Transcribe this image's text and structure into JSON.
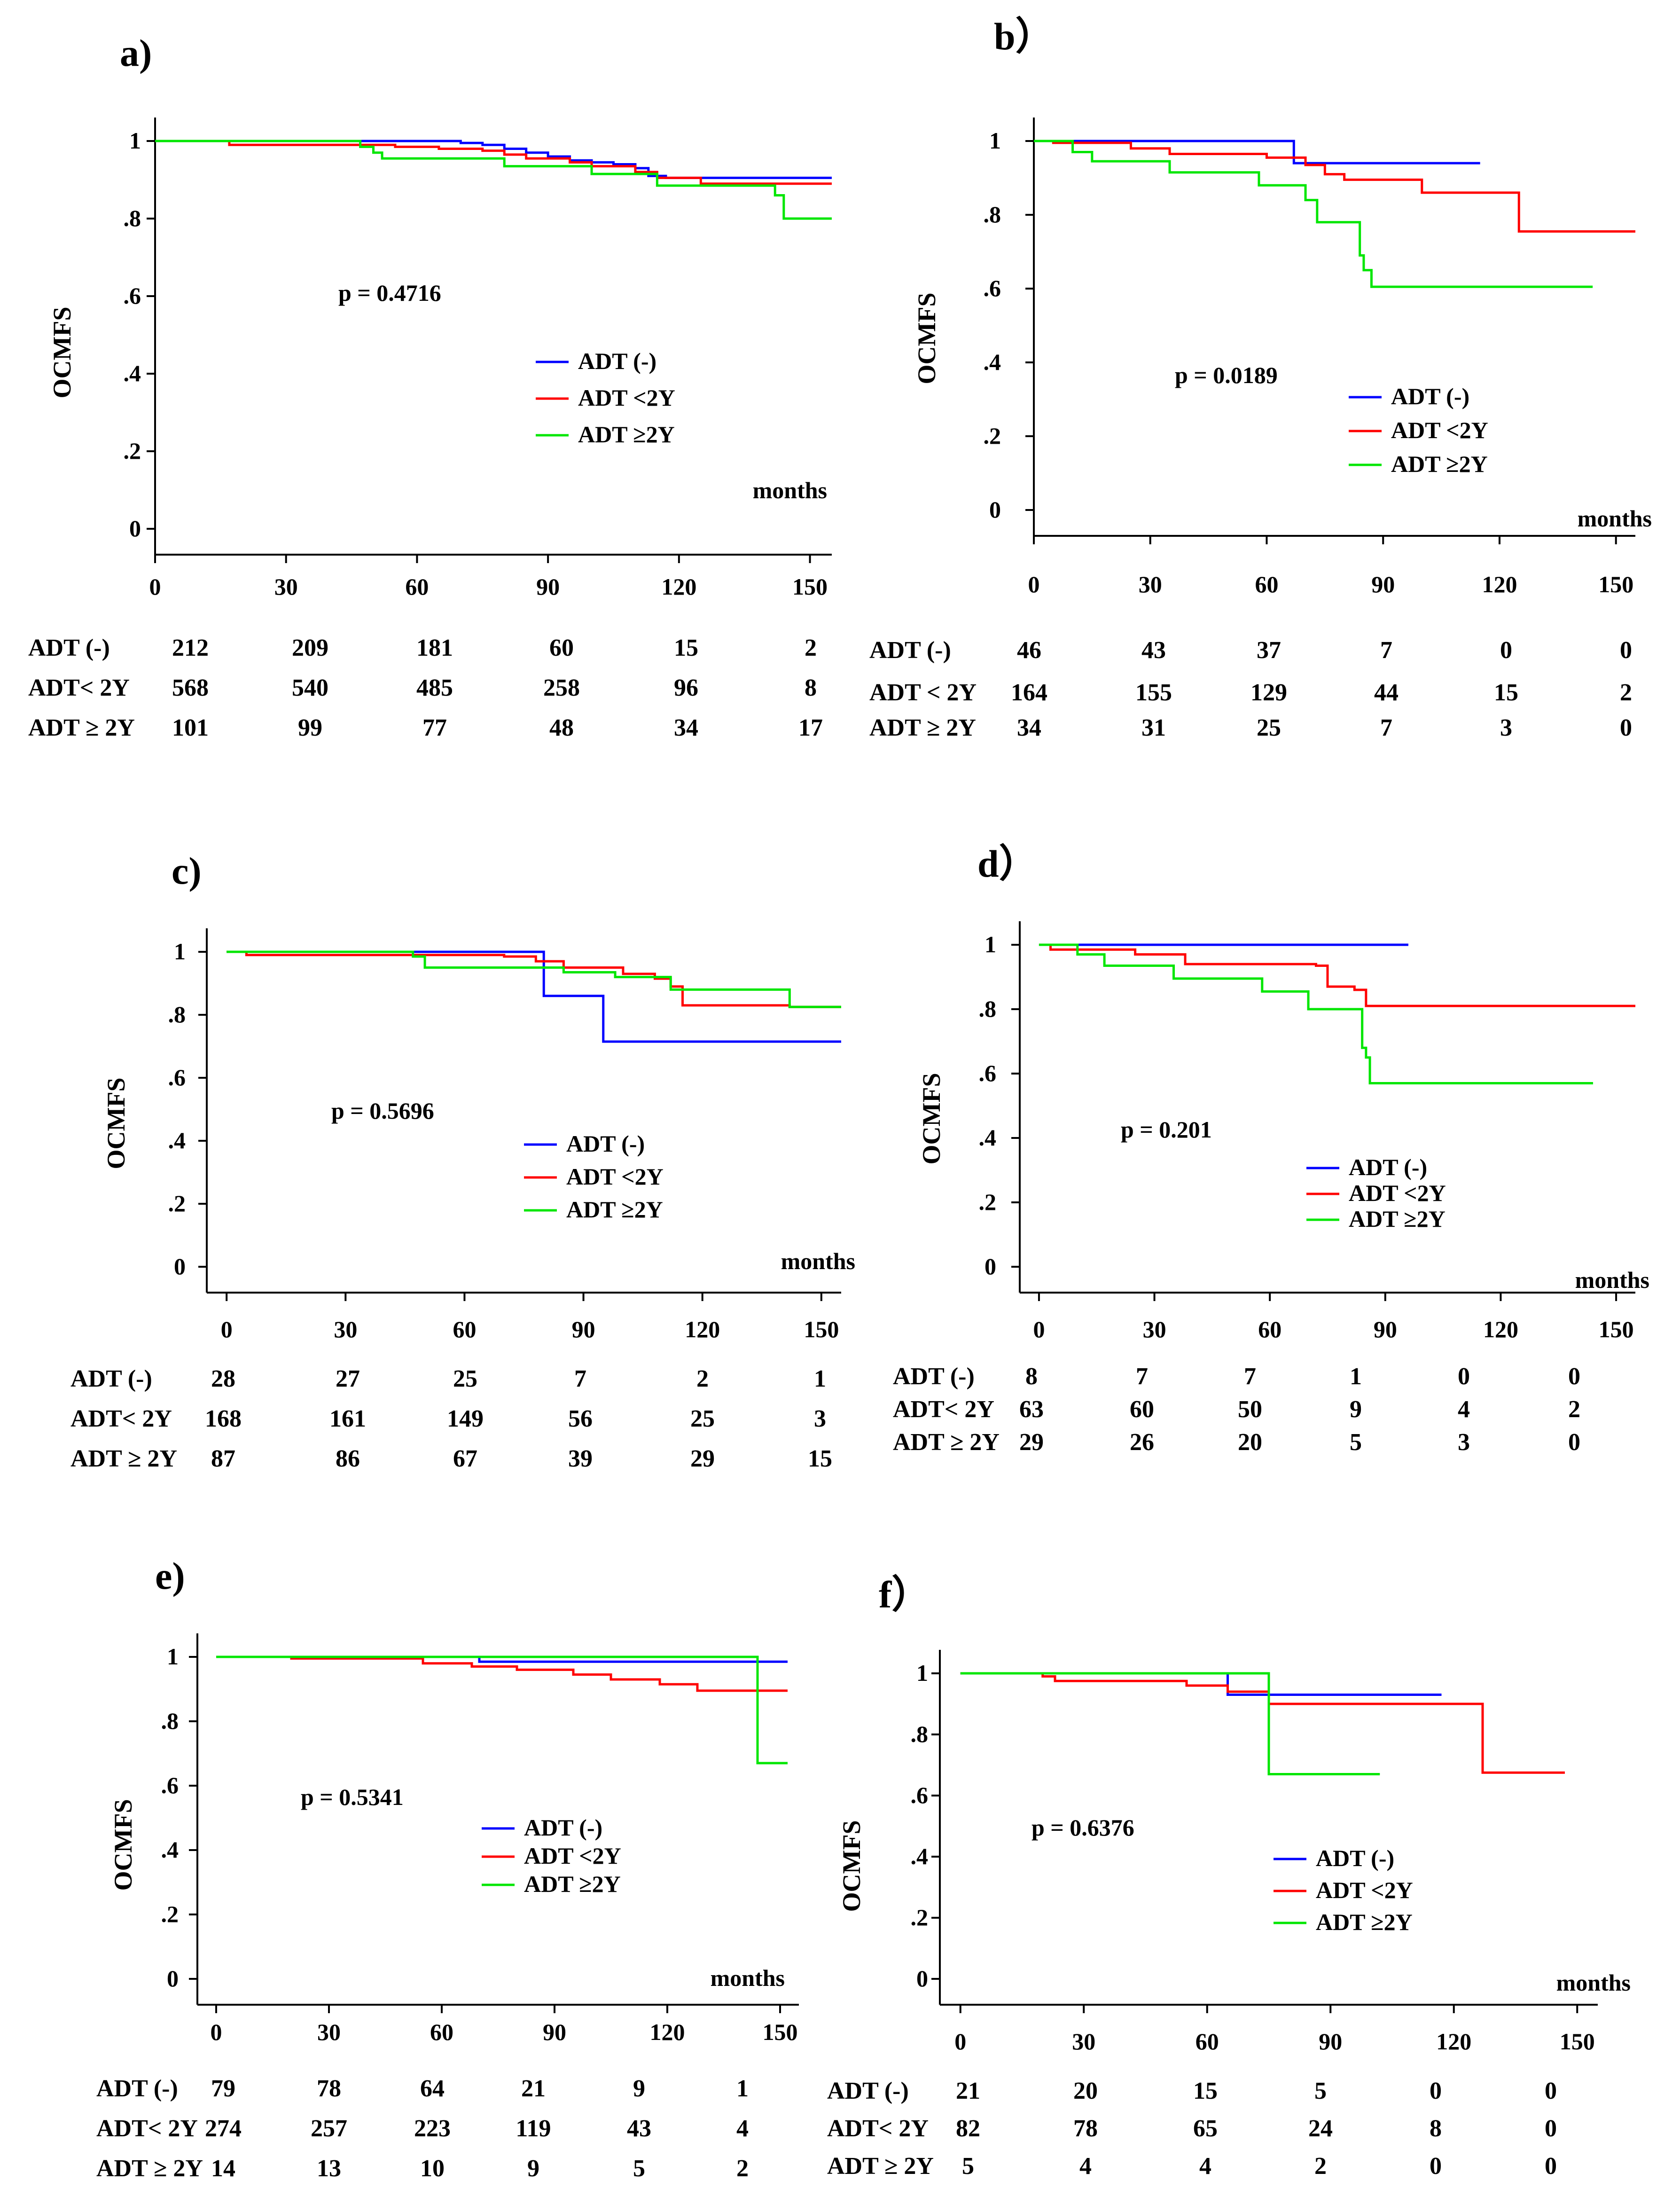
{
  "colors": {
    "ADT (-)": "#0000ff",
    "ADT <2Y": "#ff0000",
    "ADT ≥2Y": "#00e600"
  },
  "chart_data": [
    {
      "type": "line",
      "panel": "a)",
      "ylabel": "OCMFS",
      "xlabel": "months",
      "xticks": [
        "0",
        "30",
        "60",
        "90",
        "120",
        "150"
      ],
      "yticks": [
        "0",
        ".2",
        ".4",
        ".6",
        ".8",
        "1"
      ],
      "xlim": [
        0,
        155
      ],
      "ylim": [
        0,
        1
      ],
      "p_value": "p = 0.4716",
      "legend": [
        "ADT (-)",
        "ADT <2Y",
        "ADT ≥2Y"
      ],
      "series": [
        {
          "name": "ADT (-)",
          "x": [
            0,
            65,
            70,
            75,
            80,
            85,
            90,
            95,
            100,
            105,
            110,
            113,
            117,
            155
          ],
          "y": [
            1,
            1,
            0.995,
            0.99,
            0.98,
            0.97,
            0.96,
            0.95,
            0.945,
            0.94,
            0.93,
            0.91,
            0.905,
            0.905
          ]
        },
        {
          "name": "ADT <2Y",
          "x": [
            0,
            17,
            45,
            55,
            65,
            75,
            80,
            85,
            95,
            100,
            110,
            115,
            125,
            155
          ],
          "y": [
            1,
            0.99,
            0.99,
            0.985,
            0.98,
            0.975,
            0.965,
            0.955,
            0.945,
            0.935,
            0.92,
            0.905,
            0.89,
            0.89
          ]
        },
        {
          "name": "ADT ≥2Y",
          "x": [
            0,
            45,
            47,
            50,
            52,
            80,
            100,
            115,
            142,
            144,
            155
          ],
          "y": [
            1,
            1,
            0.985,
            0.97,
            0.955,
            0.935,
            0.915,
            0.885,
            0.86,
            0.8,
            0.8
          ]
        }
      ],
      "risk_table": {
        "rows": [
          {
            "label": "ADT (-)",
            "values": [
              "212",
              "209",
              "181",
              "60",
              "15",
              "2"
            ]
          },
          {
            "label": "ADT< 2Y",
            "values": [
              "568",
              "540",
              "485",
              "258",
              "96",
              "8"
            ]
          },
          {
            "label": "ADT ≥ 2Y",
            "values": [
              "101",
              "99",
              "77",
              "48",
              "34",
              "17"
            ]
          }
        ]
      }
    },
    {
      "type": "line",
      "panel": "b）",
      "ylabel": "OCMFS",
      "xlabel": "months",
      "xticks": [
        "0",
        "30",
        "60",
        "90",
        "120",
        "150"
      ],
      "yticks": [
        "0",
        ".2",
        ".4",
        ".6",
        ".8",
        "1"
      ],
      "xlim": [
        0,
        155
      ],
      "ylim": [
        0,
        1
      ],
      "p_value": "p = 0.0189",
      "legend": [
        "ADT (-)",
        "ADT <2Y",
        "ADT ≥2Y"
      ],
      "series": [
        {
          "name": "ADT (-)",
          "x": [
            0,
            65,
            67,
            115
          ],
          "y": [
            1,
            1,
            0.94,
            0.94
          ]
        },
        {
          "name": "ADT <2Y",
          "x": [
            0,
            5,
            25,
            35,
            60,
            70,
            75,
            80,
            100,
            123,
            125,
            155
          ],
          "y": [
            1,
            0.995,
            0.98,
            0.965,
            0.955,
            0.935,
            0.91,
            0.895,
            0.86,
            0.86,
            0.755,
            0.755
          ]
        },
        {
          "name": "ADT ≥2Y",
          "x": [
            0,
            10,
            15,
            35,
            58,
            70,
            73,
            84,
            85,
            87,
            144
          ],
          "y": [
            1,
            0.97,
            0.945,
            0.915,
            0.88,
            0.84,
            0.78,
            0.69,
            0.65,
            0.605,
            0.605
          ]
        }
      ],
      "risk_table": {
        "rows": [
          {
            "label": "ADT (-)",
            "values": [
              "46",
              "43",
              "37",
              "7",
              "0",
              "0"
            ]
          },
          {
            "label": "ADT < 2Y",
            "values": [
              "164",
              "155",
              "129",
              "44",
              "15",
              "2"
            ]
          },
          {
            "label": "ADT ≥ 2Y",
            "values": [
              "34",
              "31",
              "25",
              "7",
              "3",
              "0"
            ]
          }
        ]
      }
    },
    {
      "type": "line",
      "panel": "c)",
      "ylabel": "OCMFS",
      "xlabel": "months",
      "xticks": [
        "0",
        "30",
        "60",
        "90",
        "120",
        "150"
      ],
      "yticks": [
        "0",
        ".2",
        ".4",
        ".6",
        ".8",
        "1"
      ],
      "xlim": [
        -5,
        155
      ],
      "ylim": [
        0,
        1
      ],
      "p_value": "p = 0.5696",
      "legend": [
        "ADT (-)",
        "ADT <2Y",
        "ADT ≥2Y"
      ],
      "series": [
        {
          "name": "ADT (-)",
          "x": [
            0,
            78,
            80,
            93,
            95,
            155
          ],
          "y": [
            1,
            1,
            0.86,
            0.86,
            0.715,
            0.715
          ]
        },
        {
          "name": "ADT <2Y",
          "x": [
            0,
            5,
            70,
            78,
            85,
            100,
            108,
            112,
            115,
            142,
            155
          ],
          "y": [
            1,
            0.99,
            0.985,
            0.97,
            0.95,
            0.93,
            0.915,
            0.89,
            0.83,
            0.825,
            0.825
          ]
        },
        {
          "name": "ADT ≥2Y",
          "x": [
            0,
            45,
            47,
            50,
            78,
            85,
            98,
            112,
            140,
            142,
            155
          ],
          "y": [
            1,
            1,
            0.985,
            0.95,
            0.95,
            0.935,
            0.92,
            0.88,
            0.88,
            0.825,
            0.825
          ]
        }
      ],
      "risk_table": {
        "rows": [
          {
            "label": "ADT (-)",
            "values": [
              "28",
              "27",
              "25",
              "7",
              "2",
              "1"
            ]
          },
          {
            "label": "ADT< 2Y",
            "values": [
              "168",
              "161",
              "149",
              "56",
              "25",
              "3"
            ]
          },
          {
            "label": "ADT ≥ 2Y",
            "values": [
              "87",
              "86",
              "67",
              "39",
              "29",
              "15"
            ]
          }
        ]
      }
    },
    {
      "type": "line",
      "panel": "d）",
      "ylabel": "OCMFS",
      "xlabel": "months",
      "xticks": [
        "0",
        "30",
        "60",
        "90",
        "120",
        "150"
      ],
      "yticks": [
        "0",
        ".2",
        ".4",
        ".6",
        ".8",
        "1"
      ],
      "xlim": [
        -5,
        155
      ],
      "ylim": [
        0,
        1
      ],
      "p_value": "p = 0.201",
      "legend": [
        "ADT (-)",
        "ADT <2Y",
        "ADT ≥2Y"
      ],
      "series": [
        {
          "name": "ADT (-)",
          "x": [
            0,
            96
          ],
          "y": [
            1,
            1
          ]
        },
        {
          "name": "ADT <2Y",
          "x": [
            0,
            3,
            25,
            38,
            72,
            75,
            82,
            85,
            155
          ],
          "y": [
            1,
            0.985,
            0.97,
            0.94,
            0.935,
            0.87,
            0.86,
            0.81,
            0.81
          ]
        },
        {
          "name": "ADT ≥2Y",
          "x": [
            0,
            10,
            17,
            35,
            58,
            70,
            83,
            84,
            85,
            86,
            144
          ],
          "y": [
            1,
            0.97,
            0.935,
            0.895,
            0.855,
            0.8,
            0.8,
            0.68,
            0.65,
            0.57,
            0.57
          ]
        }
      ],
      "risk_table": {
        "rows": [
          {
            "label": "ADT (-)",
            "values": [
              "8",
              "7",
              "7",
              "1",
              "0",
              "0"
            ]
          },
          {
            "label": "ADT< 2Y",
            "values": [
              "63",
              "60",
              "50",
              "9",
              "4",
              "2"
            ]
          },
          {
            "label": "ADT ≥ 2Y",
            "values": [
              "29",
              "26",
              "20",
              "5",
              "3",
              "0"
            ]
          }
        ]
      }
    },
    {
      "type": "line",
      "panel": "e)",
      "ylabel": "OCMFS",
      "xlabel": "months",
      "xticks": [
        "0",
        "30",
        "60",
        "90",
        "120",
        "150"
      ],
      "yticks": [
        "0",
        ".2",
        ".4",
        ".6",
        ".8",
        "1"
      ],
      "xlim": [
        -5,
        155
      ],
      "ylim": [
        0,
        1
      ],
      "p_value": "p = 0.5341",
      "legend": [
        "ADT (-)",
        "ADT <2Y",
        "ADT ≥2Y"
      ],
      "series": [
        {
          "name": "ADT (-)",
          "x": [
            0,
            68,
            70,
            152
          ],
          "y": [
            1,
            1,
            0.985,
            0.985
          ]
        },
        {
          "name": "ADT <2Y",
          "x": [
            0,
            20,
            55,
            68,
            80,
            95,
            105,
            118,
            128,
            152
          ],
          "y": [
            1,
            0.995,
            0.98,
            0.97,
            0.96,
            0.945,
            0.93,
            0.915,
            0.895,
            0.895
          ]
        },
        {
          "name": "ADT ≥2Y",
          "x": [
            0,
            142,
            144,
            152
          ],
          "y": [
            1,
            1,
            0.67,
            0.67
          ]
        }
      ],
      "risk_table": {
        "rows": [
          {
            "label": "ADT (-)",
            "values": [
              "79",
              "78",
              "64",
              "21",
              "9",
              "1"
            ]
          },
          {
            "label": "ADT< 2Y",
            "values": [
              "274",
              "257",
              "223",
              "119",
              "43",
              "4"
            ]
          },
          {
            "label": "ADT ≥ 2Y",
            "values": [
              "14",
              "13",
              "10",
              "9",
              "5",
              "2"
            ]
          }
        ]
      }
    },
    {
      "type": "line",
      "panel": "f）",
      "ylabel": "OCMFS",
      "xlabel": "months",
      "xticks": [
        "0",
        "30",
        "60",
        "90",
        "120",
        "150"
      ],
      "yticks": [
        "0",
        ".2",
        ".4",
        ".6",
        ".8",
        "1"
      ],
      "xlim": [
        -5,
        155
      ],
      "ylim": [
        0,
        1
      ],
      "p_value": "p = 0.6376",
      "legend": [
        "ADT (-)",
        "ADT <2Y",
        "ADT ≥2Y"
      ],
      "series": [
        {
          "name": "ADT (-)",
          "x": [
            0,
            62,
            65,
            117
          ],
          "y": [
            1,
            1,
            0.93,
            0.93
          ]
        },
        {
          "name": "ADT <2Y",
          "x": [
            0,
            20,
            23,
            55,
            65,
            75,
            125,
            127,
            147
          ],
          "y": [
            1,
            0.99,
            0.975,
            0.96,
            0.94,
            0.9,
            0.9,
            0.675,
            0.675
          ]
        },
        {
          "name": "ADT ≥2Y",
          "x": [
            0,
            74,
            75,
            102
          ],
          "y": [
            1,
            1,
            0.67,
            0.67
          ]
        }
      ],
      "risk_table": {
        "rows": [
          {
            "label": "ADT (-)",
            "values": [
              "21",
              "20",
              "15",
              "5",
              "0",
              "0"
            ]
          },
          {
            "label": "ADT< 2Y",
            "values": [
              "82",
              "78",
              "65",
              "24",
              "8",
              "0"
            ]
          },
          {
            "label": "ADT ≥ 2Y",
            "values": [
              "5",
              "4",
              "4",
              "2",
              "0",
              "0"
            ]
          }
        ]
      }
    }
  ]
}
